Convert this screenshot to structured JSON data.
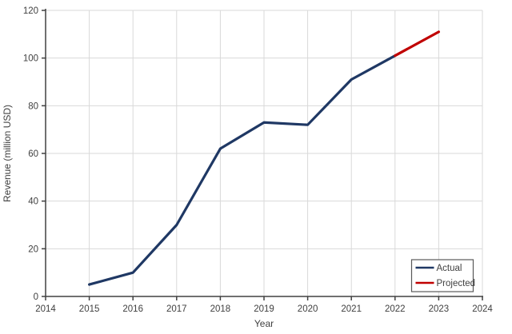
{
  "chart_data": {
    "type": "line",
    "title": "",
    "xlabel": "Year",
    "ylabel": "Revenue (million USD)",
    "xlim": [
      2014,
      2024
    ],
    "ylim": [
      0,
      120
    ],
    "x_ticks": [
      2014,
      2015,
      2016,
      2017,
      2018,
      2019,
      2020,
      2021,
      2022,
      2023,
      2024
    ],
    "y_ticks": [
      0,
      20,
      40,
      60,
      80,
      100,
      120
    ],
    "grid": true,
    "legend_position": "bottom-right",
    "series": [
      {
        "name": "Actual",
        "color": "#1F3864",
        "x": [
          2015,
          2016,
          2017,
          2018,
          2019,
          2020,
          2021,
          2022
        ],
        "values": [
          5,
          10,
          30,
          62,
          73,
          72,
          91,
          101
        ]
      },
      {
        "name": "Projected",
        "color": "#C00000",
        "x": [
          2022,
          2023
        ],
        "values": [
          101,
          111
        ]
      }
    ]
  },
  "colors": {
    "background": "#FFFFFF",
    "gridline": "#D9D9D9",
    "axis_line": "#404040",
    "tick_text": "#404040",
    "axis_title_text": "#404040",
    "legend_border": "#595959",
    "legend_fill": "#FFFFFF"
  }
}
